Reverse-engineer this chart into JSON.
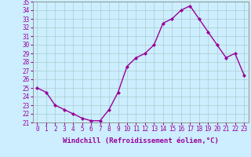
{
  "x": [
    0,
    1,
    2,
    3,
    4,
    5,
    6,
    7,
    8,
    9,
    10,
    11,
    12,
    13,
    14,
    15,
    16,
    17,
    18,
    19,
    20,
    21,
    22,
    23
  ],
  "y": [
    25.0,
    24.5,
    23.0,
    22.5,
    22.0,
    21.5,
    21.2,
    21.2,
    22.5,
    24.5,
    27.5,
    28.5,
    29.0,
    30.0,
    32.5,
    33.0,
    34.0,
    34.5,
    33.0,
    31.5,
    30.0,
    28.5,
    29.0,
    26.5
  ],
  "line_color": "#990099",
  "marker": "D",
  "marker_size": 2,
  "bg_color": "#cceeff",
  "grid_color": "#aacccc",
  "xlabel": "Windchill (Refroidissement éolien,°C)",
  "ylabel_ticks": [
    21,
    22,
    23,
    24,
    25,
    26,
    27,
    28,
    29,
    30,
    31,
    32,
    33,
    34,
    35
  ],
  "ylim": [
    21,
    35
  ],
  "xlim_min": -0.5,
  "xlim_max": 23.5,
  "tick_label_color": "#990099",
  "tick_label_fontsize": 5.5,
  "xlabel_fontsize": 6.5,
  "line_width": 1.0
}
